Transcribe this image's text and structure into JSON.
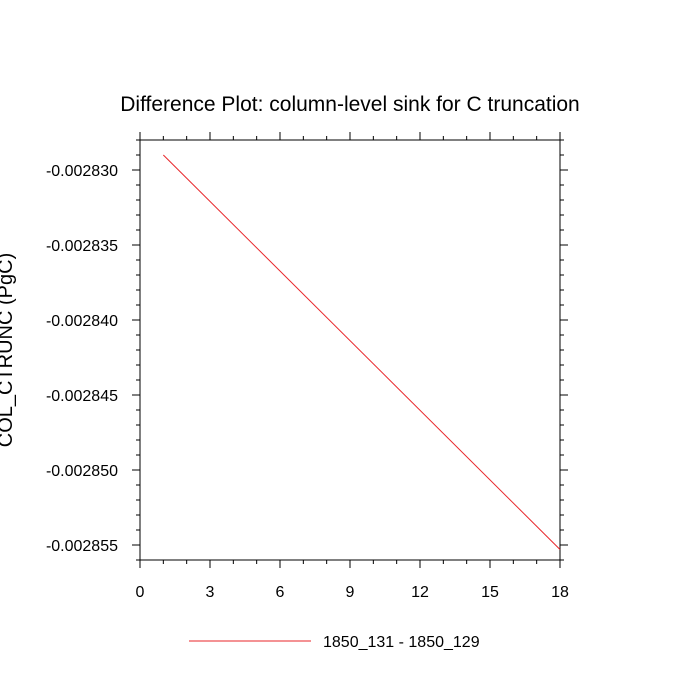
{
  "chart_data": {
    "type": "line",
    "title": "Difference Plot: column-level sink for C truncation",
    "xlabel": "",
    "ylabel": "COL_CTRUNC  (PgC)",
    "xlim": [
      0,
      18
    ],
    "ylim": [
      -0.002856,
      -0.002828
    ],
    "xticks": [
      0,
      3,
      6,
      9,
      12,
      15,
      18
    ],
    "yticks": [
      -0.00283,
      -0.002835,
      -0.00284,
      -0.002845,
      -0.00285,
      -0.002855
    ],
    "ytick_labels": [
      "-0.002830",
      "-0.002835",
      "-0.002840",
      "-0.002845",
      "-0.002850",
      "-0.002855"
    ],
    "grid": false,
    "legend_position": "bottom-center",
    "series": [
      {
        "name": "1850_131 - 1850_129",
        "color": "#e8262a",
        "x": [
          1,
          18
        ],
        "y": [
          -0.002829,
          -0.0028553
        ]
      }
    ]
  }
}
